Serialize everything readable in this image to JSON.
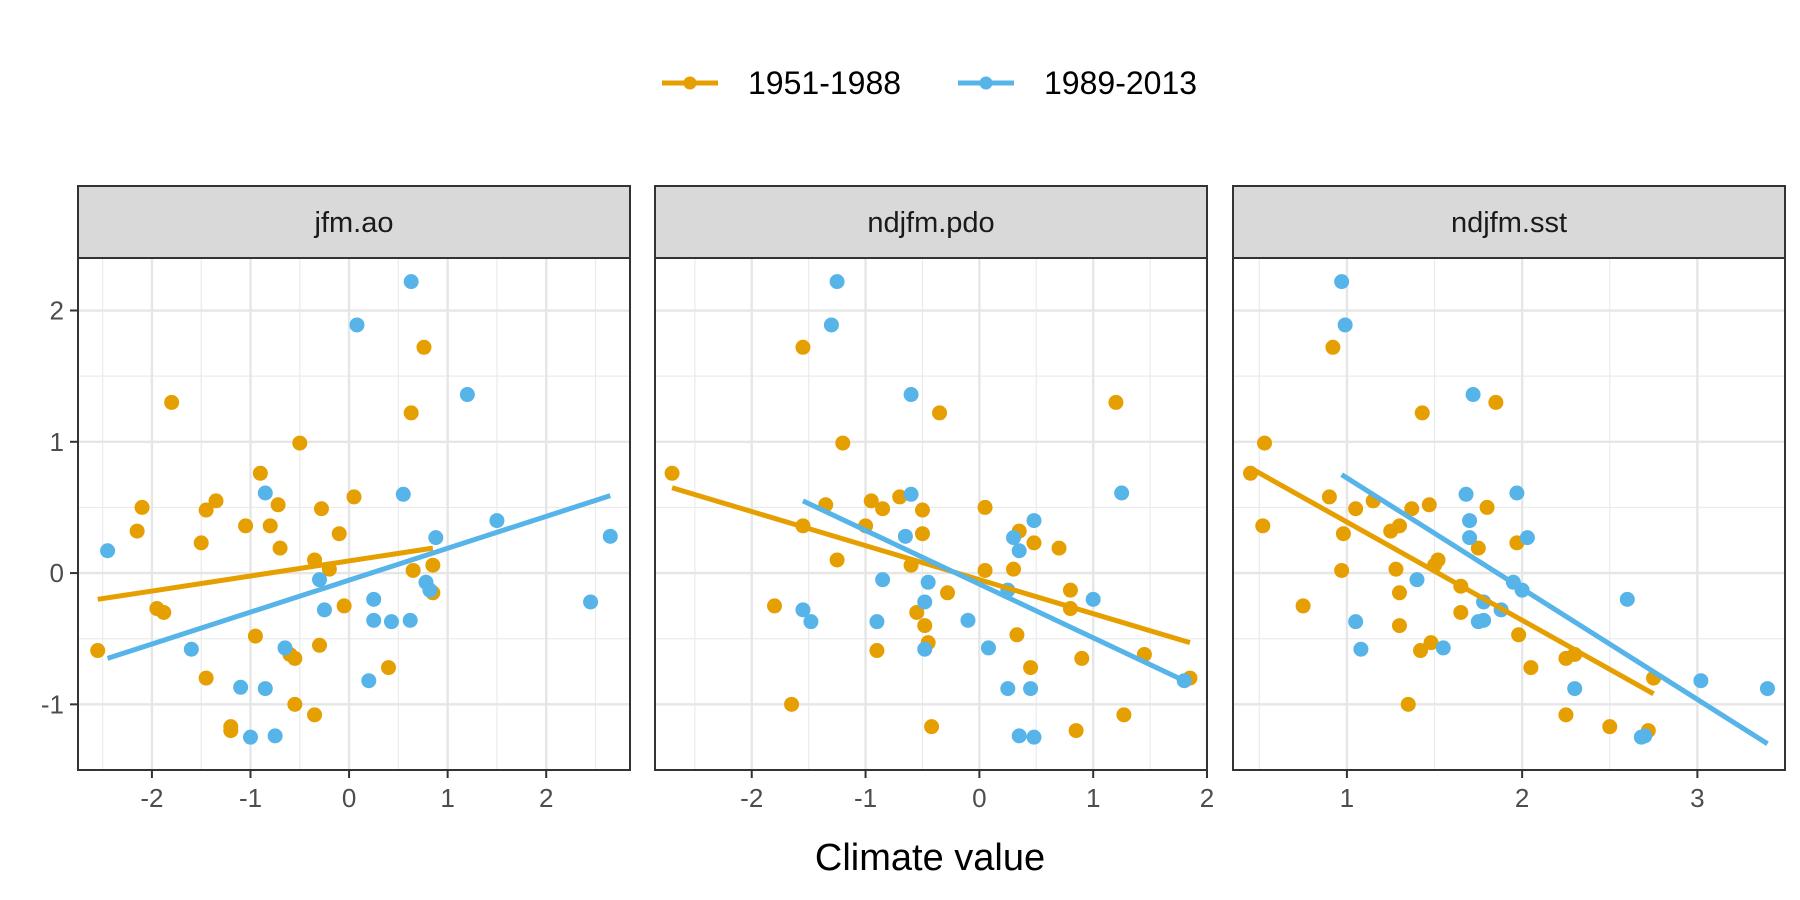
{
  "chart_data": {
    "type": "scatter",
    "facets": [
      "jfm.ao",
      "ndjfm.pdo",
      "ndjfm.sst"
    ],
    "xlabel": "Climate value",
    "ylabel": "",
    "legend_position": "top",
    "grid": true,
    "ylim": [
      -1.5,
      2.4
    ],
    "yticks": [
      -1,
      0,
      1,
      2
    ],
    "colors": {
      "1951-1988": "#E69F00",
      "1989-2013": "#56B4E9"
    },
    "series": [
      {
        "name": "1951-1988",
        "color": "#E69F00"
      },
      {
        "name": "1989-2013",
        "color": "#56B4E9"
      }
    ],
    "panels": [
      {
        "facet": "jfm.ao",
        "xlim": [
          -2.75,
          2.85
        ],
        "xticks": [
          -2,
          -1,
          0,
          1,
          2
        ],
        "points": {
          "1951-1988": [
            [
              -2.55,
              -0.59
            ],
            [
              -2.1,
              0.5
            ],
            [
              -2.15,
              0.32
            ],
            [
              -1.95,
              -0.27
            ],
            [
              -1.88,
              -0.3
            ],
            [
              -1.8,
              1.3
            ],
            [
              -1.5,
              0.23
            ],
            [
              -1.45,
              -0.8
            ],
            [
              -1.45,
              0.48
            ],
            [
              -1.35,
              0.55
            ],
            [
              -1.2,
              -1.17
            ],
            [
              -1.2,
              -1.2
            ],
            [
              -1.05,
              0.36
            ],
            [
              -0.9,
              0.76
            ],
            [
              -0.95,
              -0.48
            ],
            [
              -0.8,
              0.36
            ],
            [
              -0.72,
              0.52
            ],
            [
              -0.7,
              0.19
            ],
            [
              -0.6,
              -0.62
            ],
            [
              -0.55,
              -0.65
            ],
            [
              -0.5,
              0.99
            ],
            [
              -0.55,
              -1.0
            ],
            [
              -0.35,
              -1.08
            ],
            [
              -0.35,
              0.1
            ],
            [
              -0.3,
              -0.55
            ],
            [
              -0.28,
              0.49
            ],
            [
              -0.2,
              0.03
            ],
            [
              -0.1,
              0.3
            ],
            [
              -0.05,
              -0.25
            ],
            [
              0.05,
              0.58
            ],
            [
              0.4,
              -0.72
            ],
            [
              0.63,
              1.22
            ],
            [
              0.65,
              0.02
            ],
            [
              0.76,
              1.72
            ],
            [
              0.85,
              0.06
            ],
            [
              0.85,
              -0.15
            ]
          ],
          "1989-2013": [
            [
              -2.45,
              0.17
            ],
            [
              -1.6,
              -0.58
            ],
            [
              -1.1,
              -0.87
            ],
            [
              -1.0,
              -1.25
            ],
            [
              -0.85,
              0.61
            ],
            [
              -0.85,
              -0.88
            ],
            [
              -0.75,
              -1.24
            ],
            [
              -0.65,
              -0.57
            ],
            [
              -0.3,
              -0.05
            ],
            [
              -0.25,
              -0.28
            ],
            [
              0.08,
              1.89
            ],
            [
              0.2,
              -0.82
            ],
            [
              0.25,
              -0.2
            ],
            [
              0.25,
              -0.36
            ],
            [
              0.43,
              -0.37
            ],
            [
              0.55,
              0.6
            ],
            [
              0.62,
              -0.36
            ],
            [
              0.63,
              2.22
            ],
            [
              0.78,
              -0.07
            ],
            [
              0.82,
              -0.13
            ],
            [
              0.88,
              0.27
            ],
            [
              1.2,
              1.36
            ],
            [
              1.5,
              0.4
            ],
            [
              2.45,
              -0.22
            ],
            [
              2.65,
              0.28
            ]
          ]
        },
        "fit_lines": {
          "1951-1988": [
            [
              -2.55,
              -0.2
            ],
            [
              0.85,
              0.19
            ]
          ],
          "1989-2013": [
            [
              -2.45,
              -0.65
            ],
            [
              2.65,
              0.59
            ]
          ]
        }
      },
      {
        "facet": "ndjfm.pdo",
        "xlim": [
          -2.85,
          2.0
        ],
        "xticks": [
          -2,
          -1,
          0,
          1,
          2
        ],
        "points": {
          "1951-1988": [
            [
              -2.7,
              0.76
            ],
            [
              -1.8,
              -0.25
            ],
            [
              -1.65,
              -1.0
            ],
            [
              -1.55,
              1.72
            ],
            [
              -1.55,
              0.36
            ],
            [
              -1.35,
              0.52
            ],
            [
              -1.25,
              0.1
            ],
            [
              -1.2,
              0.99
            ],
            [
              -1.0,
              0.36
            ],
            [
              -0.95,
              0.55
            ],
            [
              -0.9,
              -0.59
            ],
            [
              -0.85,
              0.49
            ],
            [
              -0.7,
              0.58
            ],
            [
              -0.6,
              0.06
            ],
            [
              -0.55,
              -0.3
            ],
            [
              -0.5,
              0.3
            ],
            [
              -0.5,
              0.48
            ],
            [
              -0.48,
              -0.4
            ],
            [
              -0.45,
              -0.53
            ],
            [
              -0.42,
              -1.17
            ],
            [
              -0.35,
              1.22
            ],
            [
              -0.28,
              -0.15
            ],
            [
              0.05,
              0.02
            ],
            [
              0.05,
              0.5
            ],
            [
              0.3,
              0.03
            ],
            [
              0.33,
              -0.47
            ],
            [
              0.35,
              0.32
            ],
            [
              0.45,
              -0.72
            ],
            [
              0.48,
              0.23
            ],
            [
              0.7,
              0.19
            ],
            [
              0.8,
              -0.13
            ],
            [
              0.8,
              -0.27
            ],
            [
              0.85,
              -1.2
            ],
            [
              0.9,
              -0.65
            ],
            [
              1.2,
              1.3
            ],
            [
              1.27,
              -1.08
            ],
            [
              1.45,
              -0.62
            ],
            [
              1.85,
              -0.8
            ]
          ],
          "1989-2013": [
            [
              -1.55,
              -0.28
            ],
            [
              -1.48,
              -0.37
            ],
            [
              -1.3,
              1.89
            ],
            [
              -1.25,
              2.22
            ],
            [
              -0.9,
              -0.37
            ],
            [
              -0.85,
              -0.05
            ],
            [
              -0.65,
              0.28
            ],
            [
              -0.6,
              1.36
            ],
            [
              -0.6,
              0.6
            ],
            [
              -0.48,
              -0.22
            ],
            [
              -0.48,
              -0.58
            ],
            [
              -0.45,
              -0.07
            ],
            [
              -0.1,
              -0.36
            ],
            [
              0.08,
              -0.57
            ],
            [
              0.25,
              -0.13
            ],
            [
              0.25,
              -0.88
            ],
            [
              0.3,
              0.27
            ],
            [
              0.35,
              0.17
            ],
            [
              0.35,
              -1.24
            ],
            [
              0.45,
              -0.88
            ],
            [
              0.48,
              0.4
            ],
            [
              0.48,
              -1.25
            ],
            [
              1.0,
              -0.2
            ],
            [
              1.25,
              0.61
            ],
            [
              1.8,
              -0.82
            ]
          ]
        },
        "fit_lines": {
          "1951-1988": [
            [
              -2.7,
              0.65
            ],
            [
              1.85,
              -0.53
            ]
          ],
          "1989-2013": [
            [
              -1.55,
              0.55
            ],
            [
              1.8,
              -0.82
            ]
          ]
        }
      },
      {
        "facet": "ndjfm.sst",
        "xlim": [
          0.35,
          3.5
        ],
        "xticks": [
          1,
          2,
          3
        ],
        "points": {
          "1951-1988": [
            [
              0.45,
              0.76
            ],
            [
              0.52,
              0.36
            ],
            [
              0.53,
              0.99
            ],
            [
              0.75,
              -0.25
            ],
            [
              0.9,
              0.58
            ],
            [
              0.92,
              1.72
            ],
            [
              0.97,
              0.02
            ],
            [
              0.98,
              0.3
            ],
            [
              1.05,
              0.49
            ],
            [
              1.15,
              0.55
            ],
            [
              1.25,
              0.32
            ],
            [
              1.28,
              0.03
            ],
            [
              1.3,
              0.36
            ],
            [
              1.3,
              -0.15
            ],
            [
              1.3,
              -0.4
            ],
            [
              1.35,
              -1.0
            ],
            [
              1.37,
              0.49
            ],
            [
              1.42,
              -0.59
            ],
            [
              1.43,
              1.22
            ],
            [
              1.47,
              0.52
            ],
            [
              1.48,
              -0.53
            ],
            [
              1.5,
              0.06
            ],
            [
              1.52,
              0.1
            ],
            [
              1.65,
              -0.3
            ],
            [
              1.65,
              -0.1
            ],
            [
              1.75,
              0.19
            ],
            [
              1.8,
              0.5
            ],
            [
              1.85,
              1.3
            ],
            [
              1.97,
              0.23
            ],
            [
              1.98,
              -0.47
            ],
            [
              2.05,
              -0.72
            ],
            [
              2.25,
              -0.65
            ],
            [
              2.25,
              -1.08
            ],
            [
              2.3,
              -0.62
            ],
            [
              2.5,
              -1.17
            ],
            [
              2.72,
              -1.2
            ],
            [
              2.75,
              -0.8
            ]
          ],
          "1989-2013": [
            [
              0.97,
              2.22
            ],
            [
              0.99,
              1.89
            ],
            [
              1.05,
              -0.37
            ],
            [
              1.08,
              -0.58
            ],
            [
              1.4,
              -0.05
            ],
            [
              1.55,
              -0.57
            ],
            [
              1.68,
              0.6
            ],
            [
              1.7,
              0.4
            ],
            [
              1.7,
              0.27
            ],
            [
              1.72,
              1.36
            ],
            [
              1.75,
              -0.37
            ],
            [
              1.78,
              -0.36
            ],
            [
              1.78,
              -0.22
            ],
            [
              1.88,
              -0.28
            ],
            [
              1.95,
              -0.07
            ],
            [
              1.97,
              0.61
            ],
            [
              2.0,
              -0.13
            ],
            [
              2.03,
              0.27
            ],
            [
              2.3,
              -0.88
            ],
            [
              2.6,
              -0.2
            ],
            [
              2.68,
              -1.25
            ],
            [
              2.7,
              -1.24
            ],
            [
              3.02,
              -0.82
            ],
            [
              3.4,
              -0.88
            ]
          ]
        },
        "fit_lines": {
          "1951-1988": [
            [
              0.45,
              0.8
            ],
            [
              2.75,
              -0.92
            ]
          ],
          "1989-2013": [
            [
              0.97,
              0.75
            ],
            [
              3.4,
              -1.3
            ]
          ]
        }
      }
    ]
  }
}
